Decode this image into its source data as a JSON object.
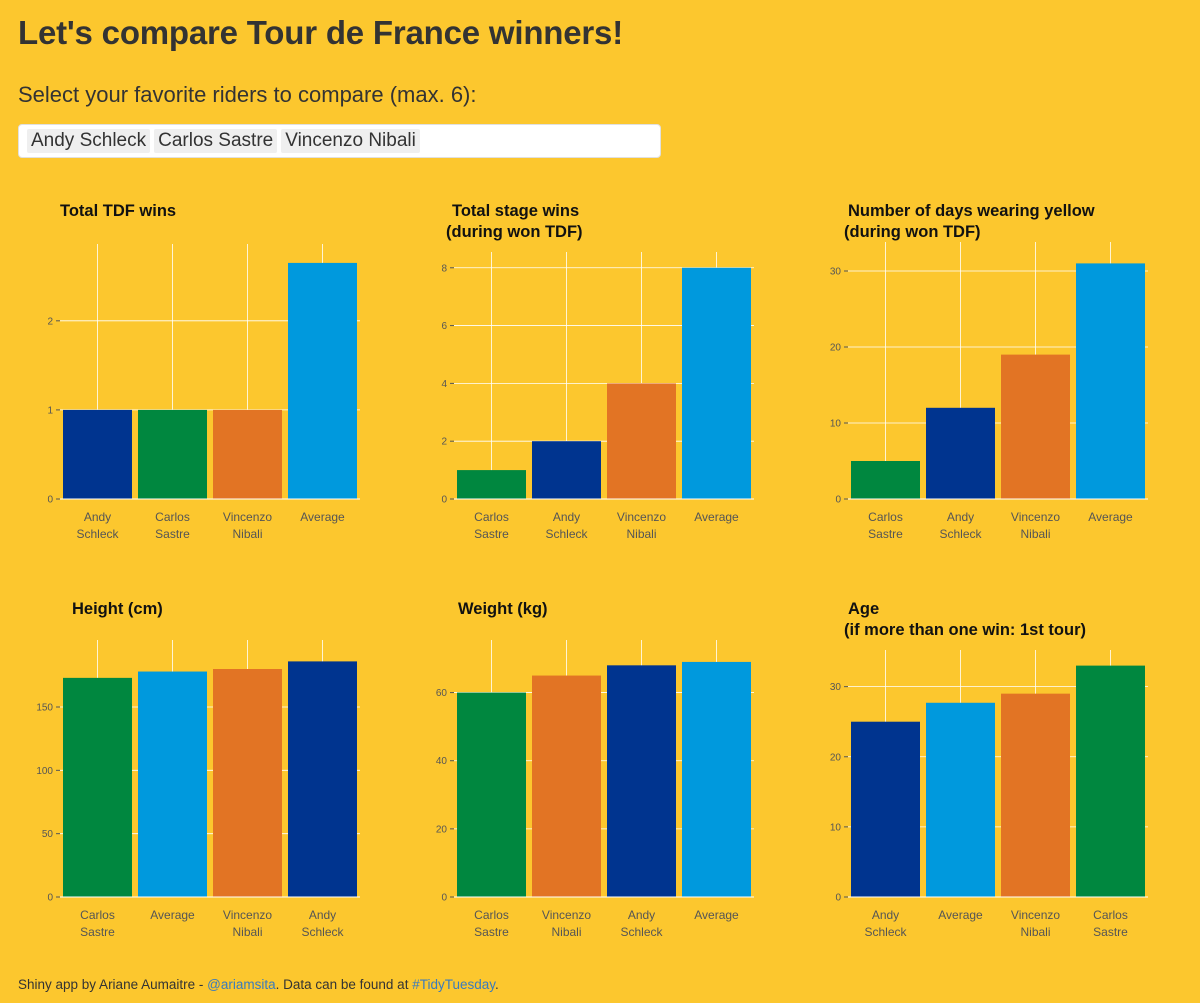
{
  "header": {
    "title": "Let's compare Tour de France winners!",
    "select_label": "Select your favorite riders to compare (max. 6):",
    "selected_riders": [
      "Andy Schleck",
      "Carlos Sastre",
      "Vincenzo Nibali"
    ]
  },
  "colors": {
    "background": "#FCC72E",
    "Andy Schleck": "#00348F",
    "Carlos Sastre": "#00873F",
    "Vincenzo Nibali": "#E27424",
    "Average": "#0099DD"
  },
  "chart_data": [
    {
      "id": "total-tdf-wins",
      "type": "bar",
      "title_lines": [
        "Total TDF wins"
      ],
      "categories": [
        "Andy Schleck",
        "Carlos Sastre",
        "Vincenzo Nibali",
        "Average"
      ],
      "category_labels": [
        [
          "Andy",
          "Schleck"
        ],
        [
          "Carlos",
          "Sastre"
        ],
        [
          "Vincenzo",
          "Nibali"
        ],
        [
          "Average"
        ]
      ],
      "values": [
        1,
        1,
        1,
        2.65
      ],
      "ylim": [
        0,
        2.75
      ],
      "yticks": [
        0,
        1,
        2
      ],
      "xlabel": "",
      "ylabel": "",
      "grid": true
    },
    {
      "id": "total-stage-wins",
      "type": "bar",
      "title_lines": [
        "Total stage wins",
        "(during won TDF)"
      ],
      "categories": [
        "Carlos Sastre",
        "Andy Schleck",
        "Vincenzo Nibali",
        "Average"
      ],
      "category_labels": [
        [
          "Carlos",
          "Sastre"
        ],
        [
          "Andy",
          "Schleck"
        ],
        [
          "Vincenzo",
          "Nibali"
        ],
        [
          "Average"
        ]
      ],
      "values": [
        1,
        2,
        4,
        8
      ],
      "ylim": [
        0,
        8.2
      ],
      "yticks": [
        0,
        2,
        4,
        6,
        8
      ],
      "xlabel": "",
      "ylabel": "",
      "grid": true
    },
    {
      "id": "days-in-yellow",
      "type": "bar",
      "title_lines": [
        "Number of days wearing yellow",
        "(during won TDF)"
      ],
      "categories": [
        "Carlos Sastre",
        "Andy Schleck",
        "Vincenzo Nibali",
        "Average"
      ],
      "category_labels": [
        [
          "Carlos",
          "Sastre"
        ],
        [
          "Andy",
          "Schleck"
        ],
        [
          "Vincenzo",
          "Nibali"
        ],
        [
          "Average"
        ]
      ],
      "values": [
        5,
        12,
        19,
        31
      ],
      "ylim": [
        0,
        32.5
      ],
      "yticks": [
        0,
        10,
        20,
        30
      ],
      "xlabel": "",
      "ylabel": "",
      "grid": true
    },
    {
      "id": "height",
      "type": "bar",
      "title_lines": [
        "Height (cm)"
      ],
      "categories": [
        "Carlos Sastre",
        "Average",
        "Vincenzo Nibali",
        "Andy Schleck"
      ],
      "category_labels": [
        [
          "Carlos",
          "Sastre"
        ],
        [
          "Average"
        ],
        [
          "Vincenzo",
          "Nibali"
        ],
        [
          "Andy",
          "Schleck"
        ]
      ],
      "values": [
        173,
        178,
        180,
        186
      ],
      "ylim": [
        0,
        195
      ],
      "yticks": [
        0,
        50,
        100,
        150
      ],
      "xlabel": "",
      "ylabel": "",
      "grid": true
    },
    {
      "id": "weight",
      "type": "bar",
      "title_lines": [
        "Weight (kg)"
      ],
      "categories": [
        "Carlos Sastre",
        "Vincenzo Nibali",
        "Andy Schleck",
        "Average"
      ],
      "category_labels": [
        [
          "Carlos",
          "Sastre"
        ],
        [
          "Vincenzo",
          "Nibali"
        ],
        [
          "Andy",
          "Schleck"
        ],
        [
          "Average"
        ]
      ],
      "values": [
        60,
        65,
        68,
        69
      ],
      "ylim": [
        0,
        72.5
      ],
      "yticks": [
        0,
        20,
        40,
        60
      ],
      "xlabel": "",
      "ylabel": "",
      "grid": true
    },
    {
      "id": "age",
      "type": "bar",
      "title_lines": [
        "Age",
        "(if more than one win: 1st tour)"
      ],
      "categories": [
        "Andy Schleck",
        "Average",
        "Vincenzo Nibali",
        "Carlos Sastre"
      ],
      "category_labels": [
        [
          "Andy",
          "Schleck"
        ],
        [
          "Average"
        ],
        [
          "Vincenzo",
          "Nibali"
        ],
        [
          "Carlos",
          "Sastre"
        ]
      ],
      "values": [
        25,
        27.7,
        29,
        33
      ],
      "ylim": [
        0,
        33.8
      ],
      "yticks": [
        0,
        10,
        20,
        30
      ],
      "xlabel": "",
      "ylabel": "",
      "grid": true
    }
  ],
  "footer": {
    "text_before": "Shiny app by Ariane Aumaitre - ",
    "twitter_handle": "@ariamsita",
    "text_middle": ". Data can be found at ",
    "data_link": "#TidyTuesday",
    "text_after": "."
  }
}
